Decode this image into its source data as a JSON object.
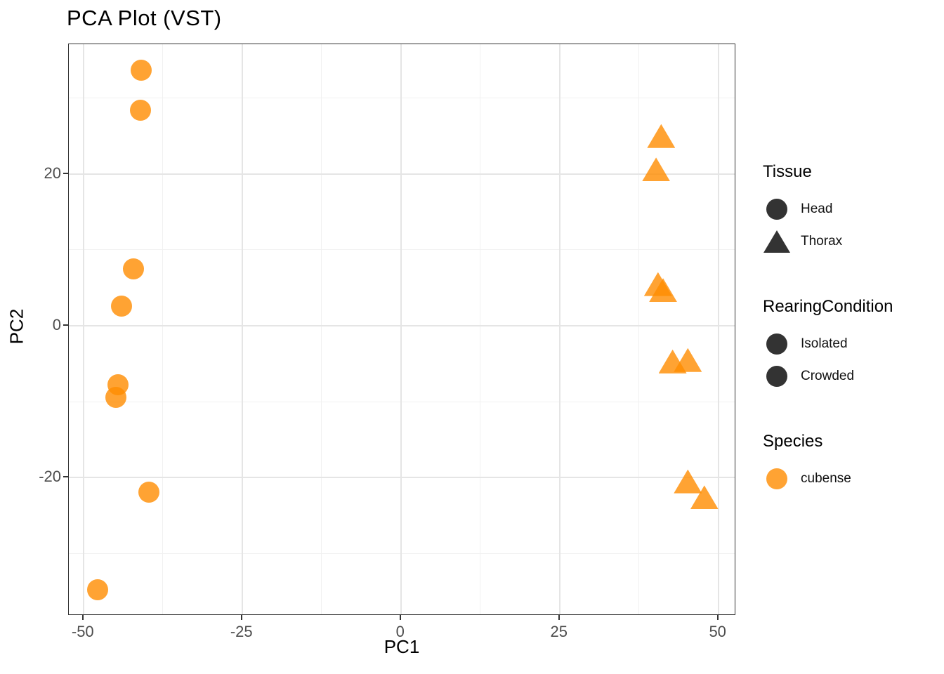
{
  "chart_data": {
    "type": "scatter",
    "title": "PCA Plot (VST)",
    "xlabel": "PC1",
    "ylabel": "PC2",
    "xlim": [
      -52.3,
      52.8
    ],
    "ylim": [
      -38.2,
      37.1
    ],
    "x_ticks": [
      -50,
      -25,
      0,
      25,
      50
    ],
    "y_ticks": [
      -20,
      0,
      20
    ],
    "x_minor_ticks": [
      -37.5,
      -12.5,
      12.5,
      37.5
    ],
    "y_minor_ticks": [
      -30,
      -10,
      10,
      30
    ],
    "grid": "on",
    "point_color": "rgba(255,140,0,0.8)",
    "series": [
      {
        "name": "Head",
        "shape": "circle",
        "points": [
          [
            -40.9,
            33.7
          ],
          [
            -41.0,
            28.4
          ],
          [
            -42.1,
            7.5
          ],
          [
            -44.0,
            2.6
          ],
          [
            -44.6,
            -7.8
          ],
          [
            -44.9,
            -9.4
          ],
          [
            -39.7,
            -21.9
          ],
          [
            -47.8,
            -34.8
          ]
        ]
      },
      {
        "name": "Thorax",
        "shape": "triangle",
        "points": [
          [
            41.0,
            25.0
          ],
          [
            40.2,
            20.6
          ],
          [
            40.5,
            5.5
          ],
          [
            41.3,
            4.7
          ],
          [
            42.8,
            -4.7
          ],
          [
            45.2,
            -4.5
          ],
          [
            45.2,
            -20.5
          ],
          [
            47.8,
            -22.6
          ]
        ]
      }
    ],
    "legend_position": "right",
    "legend": {
      "groups": [
        {
          "title": "Tissue",
          "items": [
            {
              "label": "Head",
              "shape": "circle",
              "color": "#333333"
            },
            {
              "label": "Thorax",
              "shape": "triangle",
              "color": "#333333"
            }
          ]
        },
        {
          "title": "RearingCondition",
          "items": [
            {
              "label": "Isolated",
              "shape": "circle",
              "color": "#333333"
            },
            {
              "label": "Crowded",
              "shape": "circle",
              "color": "#333333"
            }
          ]
        },
        {
          "title": "Species",
          "items": [
            {
              "label": "cubense",
              "shape": "circle",
              "color": "#ffa333"
            }
          ]
        }
      ]
    },
    "colors": {
      "point_fill": "#ff8c00",
      "point_alpha": 0.8,
      "legend_dark_glyph": "#333333",
      "gridline_major": "#e5e5e5",
      "gridline_minor": "#f1f1f1",
      "panel_border": "#333333",
      "tick_label": "#4d4d4d"
    }
  }
}
